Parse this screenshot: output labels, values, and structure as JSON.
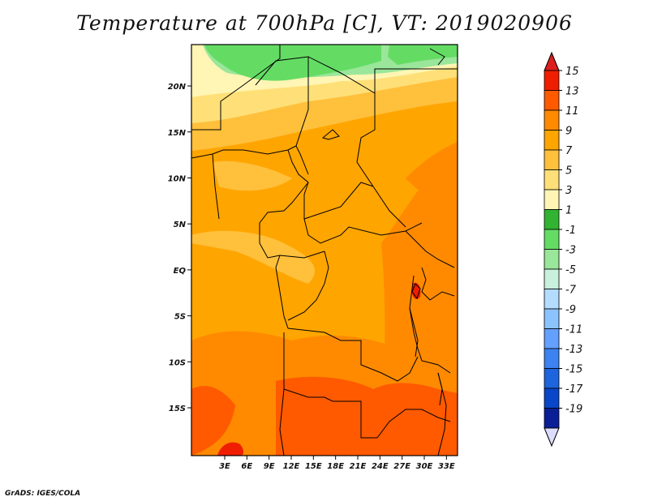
{
  "title": "Temperature at 700hPa [C], VT: 2019020906",
  "credit": "GrADS: IGES/COLA",
  "map": {
    "variable": "Temperature at 700hPa",
    "units": "C",
    "valid_time": "2019020906",
    "lon_range": [
      -1.5,
      34.5
    ],
    "lat_range": [
      -20.2,
      24.5
    ],
    "x_ticks": [
      "3E",
      "6E",
      "9E",
      "12E",
      "15E",
      "18E",
      "21E",
      "24E",
      "27E",
      "30E",
      "33E"
    ],
    "x_tick_values": [
      3,
      6,
      9,
      12,
      15,
      18,
      21,
      24,
      27,
      30,
      33
    ],
    "y_ticks": [
      "20N",
      "15N",
      "10N",
      "5N",
      "EQ",
      "5S",
      "10S",
      "15S"
    ],
    "y_tick_values": [
      20,
      15,
      10,
      5,
      0,
      -5,
      -10,
      -15
    ]
  },
  "colorbar": {
    "labels": [
      "15",
      "13",
      "11",
      "9",
      "7",
      "5",
      "3",
      "1",
      "-1",
      "-3",
      "-5",
      "-7",
      "-9",
      "-11",
      "-13",
      "-15",
      "-17",
      "-19"
    ],
    "colors": [
      "#f01e00",
      "#ff5a00",
      "#ff8a00",
      "#ffa500",
      "#ffc03c",
      "#ffe078",
      "#fff5b4",
      "#32b432",
      "#64dc64",
      "#9ae69a",
      "#c8f0dc",
      "#b4dcff",
      "#8cc3ff",
      "#64a0ff",
      "#3c82f0",
      "#1e64dc",
      "#0a46c8",
      "#0a1e96"
    ],
    "arrow_top_color": "#dc1e1e",
    "arrow_bottom_color": "#dcdcff"
  },
  "regions": {
    "green_north": "#64dc64",
    "light_green": "#9ae69a",
    "pale": "#fff5b4",
    "light_yellow": "#ffe078",
    "yellow_orange": "#ffc03c",
    "orange": "#ffa500",
    "dark_orange": "#ff8a00",
    "red_orange": "#ff5a00",
    "red": "#f01e00"
  }
}
